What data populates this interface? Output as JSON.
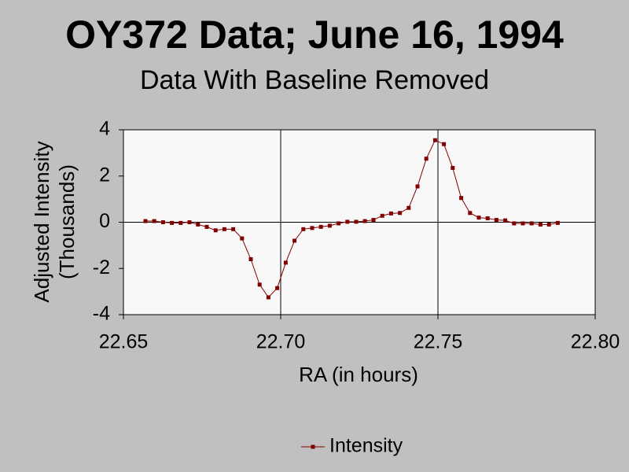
{
  "chart_data": {
    "type": "line",
    "title": "OY372 Data; June 16, 1994",
    "subtitle": "Data With Baseline Removed",
    "xlabel": "RA (in hours)",
    "ylabel": [
      "Adjusted Intensity",
      "(Thousands)"
    ],
    "xlim": [
      22.65,
      22.8
    ],
    "ylim": [
      -4,
      4
    ],
    "xticks": [
      22.65,
      {
        "value": 22.7,
        "label": "22.70"
      },
      22.75,
      {
        "value": 22.8,
        "label": "22.80"
      }
    ],
    "yticks": [
      -4,
      -2,
      0,
      2,
      4
    ],
    "grid": true,
    "legend": "bottom",
    "x": [
      22.657,
      22.6598,
      22.6626,
      22.6654,
      22.6682,
      22.671,
      22.6737,
      22.6765,
      22.6793,
      22.6821,
      22.6849,
      22.6877,
      22.6905,
      22.6933,
      22.6961,
      22.6989,
      22.7016,
      22.7044,
      22.7072,
      22.71,
      22.7128,
      22.7156,
      22.7184,
      22.7212,
      22.724,
      22.7268,
      22.7295,
      22.7323,
      22.7351,
      22.7379,
      22.7407,
      22.7435,
      22.7463,
      22.7491,
      22.7519,
      22.7547,
      22.7574,
      22.7602,
      22.763,
      22.7658,
      22.7686,
      22.7714,
      22.7742,
      22.777,
      22.7798,
      22.7826,
      22.7853,
      22.7881
    ],
    "series": [
      {
        "name": "Intensity",
        "color": "#800000",
        "values": [
          0.05,
          0.05,
          0,
          -0.03,
          -0.03,
          0,
          -0.1,
          -0.2,
          -0.35,
          -0.3,
          -0.3,
          -0.7,
          -1.6,
          -2.7,
          -3.25,
          -2.85,
          -1.75,
          -0.8,
          -0.3,
          -0.25,
          -0.2,
          -0.15,
          -0.05,
          0.02,
          0.02,
          0.05,
          0.1,
          0.28,
          0.38,
          0.4,
          0.62,
          1.55,
          2.75,
          3.55,
          3.38,
          2.35,
          1.05,
          0.4,
          0.2,
          0.17,
          0.1,
          0.08,
          -0.05,
          -0.05,
          -0.05,
          -0.1,
          -0.1,
          -0.03
        ]
      }
    ]
  }
}
